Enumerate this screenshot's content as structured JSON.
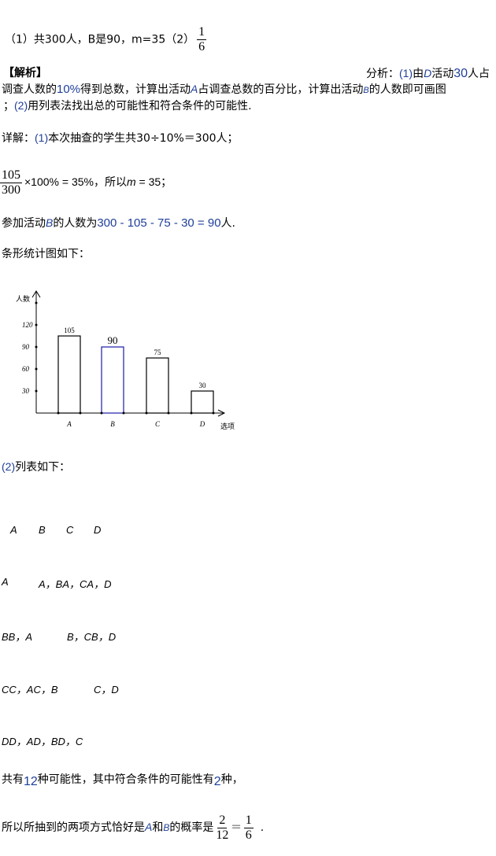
{
  "answer": {
    "text": "（1）共300人，B是90，m=35（2）",
    "frac_num": "1",
    "frac_den": "6"
  },
  "analysis": {
    "heading": "【解析】",
    "label": "分析：",
    "p1": "(1)",
    "p1a": "由",
    "p1b": "D",
    "p1c": "活动",
    "p1d": "30",
    "p1e": "人占",
    "l2a": "调查人数的",
    "l2b": "10%",
    "l2c": "得到总数，计算出活动",
    "l2d": "A",
    "l2e": "占调查总数的百分比，计算出活动",
    "l2f": "B",
    "l2g": "的人数即可画图",
    "l3a": "；",
    "l3b": "(2)",
    "l3c": "用列表法找出总的可能性和符合条件的可能性."
  },
  "detail": {
    "label": "详解：",
    "p1": "(1)",
    "text": "本次抽查的学生共30÷10%＝300人；",
    "frac_num": "105",
    "frac_den": "300",
    "calc": "×100% = 35%，所以",
    "m": "m",
    "calc2": " = 35；",
    "b_a": "参加活动",
    "b_b": "B",
    "b_c": "的人数为",
    "b_d": "300 - 105 - 75 - 30 = 90",
    "b_e": "人.",
    "chart_intro": "条形统计图如下：",
    "list_p": "(2)",
    "list_intro": "列表如下：",
    "table": {
      "header": [
        "A",
        "B",
        "C",
        "D"
      ],
      "rows": [
        [
          "A",
          "A，B",
          "A，C",
          "A，D"
        ],
        [
          "B",
          "B，A",
          "B，C",
          "B，D"
        ],
        [
          "C",
          "C，A",
          "C，B",
          "C，D"
        ],
        [
          "D",
          "D，A",
          "D，B",
          "D，C"
        ]
      ],
      "row_text": [
        {
          "c0": "A",
          "c1": "A，BA，CA，D"
        },
        {
          "c0": "BB，A",
          "c1": "B，CB，D"
        },
        {
          "c0": "CC，AC，B",
          "c1": "C，D"
        },
        {
          "c0": "DD，AD，BD，C",
          "c1": ""
        }
      ]
    },
    "total_a": "共有",
    "total_b": "12",
    "total_c": "种可能性，其中符合条件的可能性有",
    "total_d": "2",
    "total_e": "种，",
    "final_a": "所以所抽到的两项方式恰好是",
    "final_b": "A",
    "final_c": "和",
    "final_d": "B",
    "final_e": "的概率是",
    "f1_num": "2",
    "f1_den": "12",
    "eq": "=",
    "f2_num": "1",
    "f2_den": "6",
    "end": "."
  },
  "chart_data": {
    "type": "bar",
    "categories": [
      "A",
      "B",
      "C",
      "D"
    ],
    "values": [
      105,
      90,
      75,
      30
    ],
    "data_labels": [
      "105",
      "90",
      "75",
      "30"
    ],
    "ylabel": "人数",
    "xlabel": "选项",
    "yticks": [
      30,
      60,
      90,
      120
    ],
    "ylim": [
      0,
      150
    ],
    "highlight_color": "#1a1aa8",
    "bar_color": "#000000"
  }
}
